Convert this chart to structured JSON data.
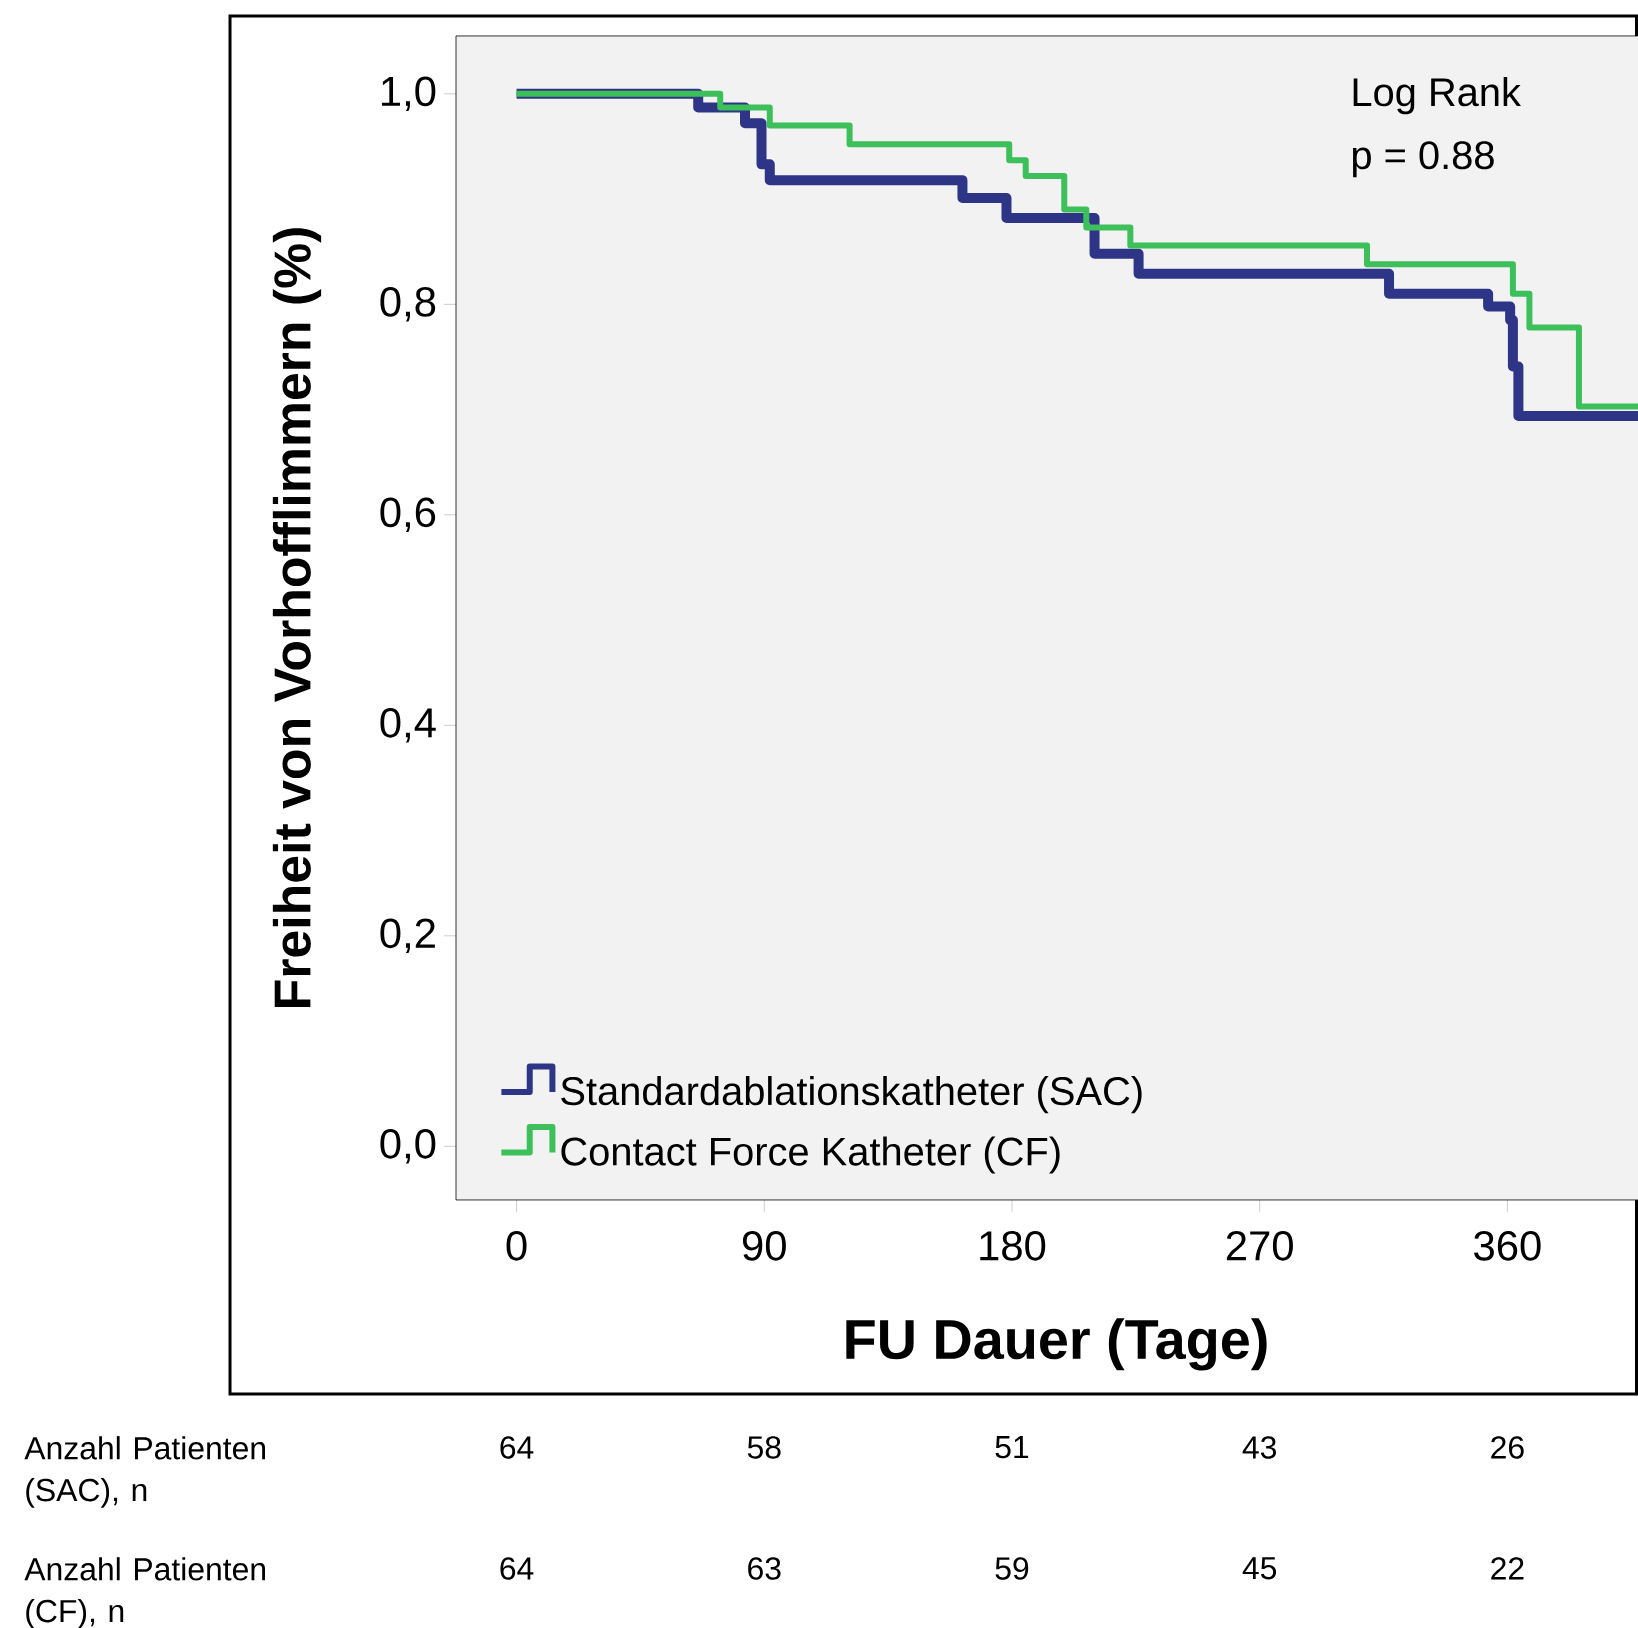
{
  "chart_data": {
    "type": "step",
    "xlabel": "FU Dauer (Tage)",
    "ylabel": "Freiheit von Vorhofflimmern (%)",
    "xlim": [
      -22,
      414
    ],
    "ylim": [
      -0.051,
      1.055
    ],
    "xticks": [
      0,
      90,
      180,
      270,
      360
    ],
    "yticks": [
      {
        "value": 0,
        "label": "0,0"
      },
      {
        "value": 0.2,
        "label": "0,2"
      },
      {
        "value": 0.4,
        "label": "0,4"
      },
      {
        "value": 0.6,
        "label": "0,6"
      },
      {
        "value": 0.8,
        "label": "0,8"
      },
      {
        "value": 1.0,
        "label": "1,0"
      }
    ],
    "legend": "bottom left",
    "grid": false,
    "series": [
      {
        "name": "Standardablationskatheter (SAC)",
        "color": "#2e3586",
        "x": [
          0,
          66,
          83,
          89,
          92,
          162,
          178,
          210,
          226,
          317,
          353,
          361,
          362,
          364,
          414
        ],
        "values": [
          1.0,
          0.987,
          0.972,
          0.933,
          0.918,
          0.901,
          0.882,
          0.848,
          0.829,
          0.81,
          0.798,
          0.785,
          0.741,
          0.694,
          0.694
        ]
      },
      {
        "name": "Contact Force Katheter (CF)",
        "color": "#3dbf5a",
        "x": [
          0,
          74,
          92,
          121,
          179,
          185,
          199,
          207,
          223,
          309,
          362,
          368,
          386,
          414
        ],
        "values": [
          1.0,
          0.987,
          0.97,
          0.952,
          0.937,
          0.922,
          0.89,
          0.873,
          0.856,
          0.838,
          0.81,
          0.778,
          0.703,
          0.703
        ]
      }
    ],
    "annotations": [
      "Log Rank",
      "p = 0.88",
      "Anzahl Patienten (SAC), n",
      "64",
      "58",
      "51",
      "43",
      "26",
      "Anzahl Patienten (CF), n",
      "64",
      "63",
      "59",
      "45",
      "22"
    ]
  }
}
